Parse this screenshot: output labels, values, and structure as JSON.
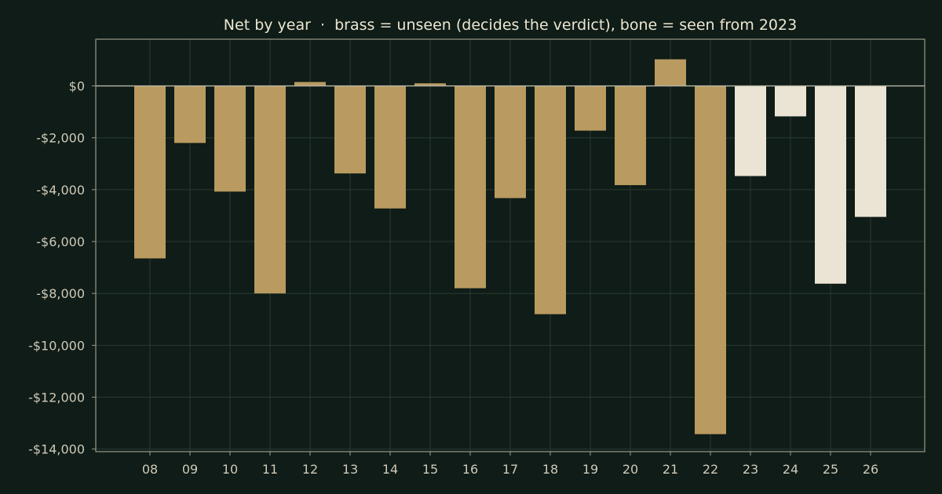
{
  "chart_data": {
    "type": "bar",
    "title": "Net by year  ·  brass = unseen (decides the verdict), bone = seen from 2023",
    "xlabel": "",
    "ylabel": "",
    "categories": [
      "08",
      "09",
      "10",
      "11",
      "12",
      "13",
      "14",
      "15",
      "16",
      "17",
      "18",
      "19",
      "20",
      "21",
      "22",
      "23",
      "24",
      "25",
      "26"
    ],
    "values": [
      -6650,
      -2200,
      -4075,
      -8000,
      150,
      -3375,
      -4725,
      100,
      -7800,
      -4325,
      -8800,
      -1725,
      -3825,
      1025,
      -13425,
      -3475,
      -1175,
      -7625,
      -5050
    ],
    "seen_from_index": 15,
    "colors": {
      "unseen": "#b99a60",
      "seen": "#ebe4d4",
      "background": "#0f1c17"
    },
    "ylim": [
      -14100,
      1800
    ],
    "yticks": [
      0,
      -2000,
      -4000,
      -6000,
      -8000,
      -10000,
      -12000,
      -14000
    ],
    "ytick_labels": [
      "$0",
      "-$2,000",
      "-$4,000",
      "-$6,000",
      "-$8,000",
      "-$10,000",
      "-$12,000",
      "-$14,000"
    ],
    "grid": true
  }
}
